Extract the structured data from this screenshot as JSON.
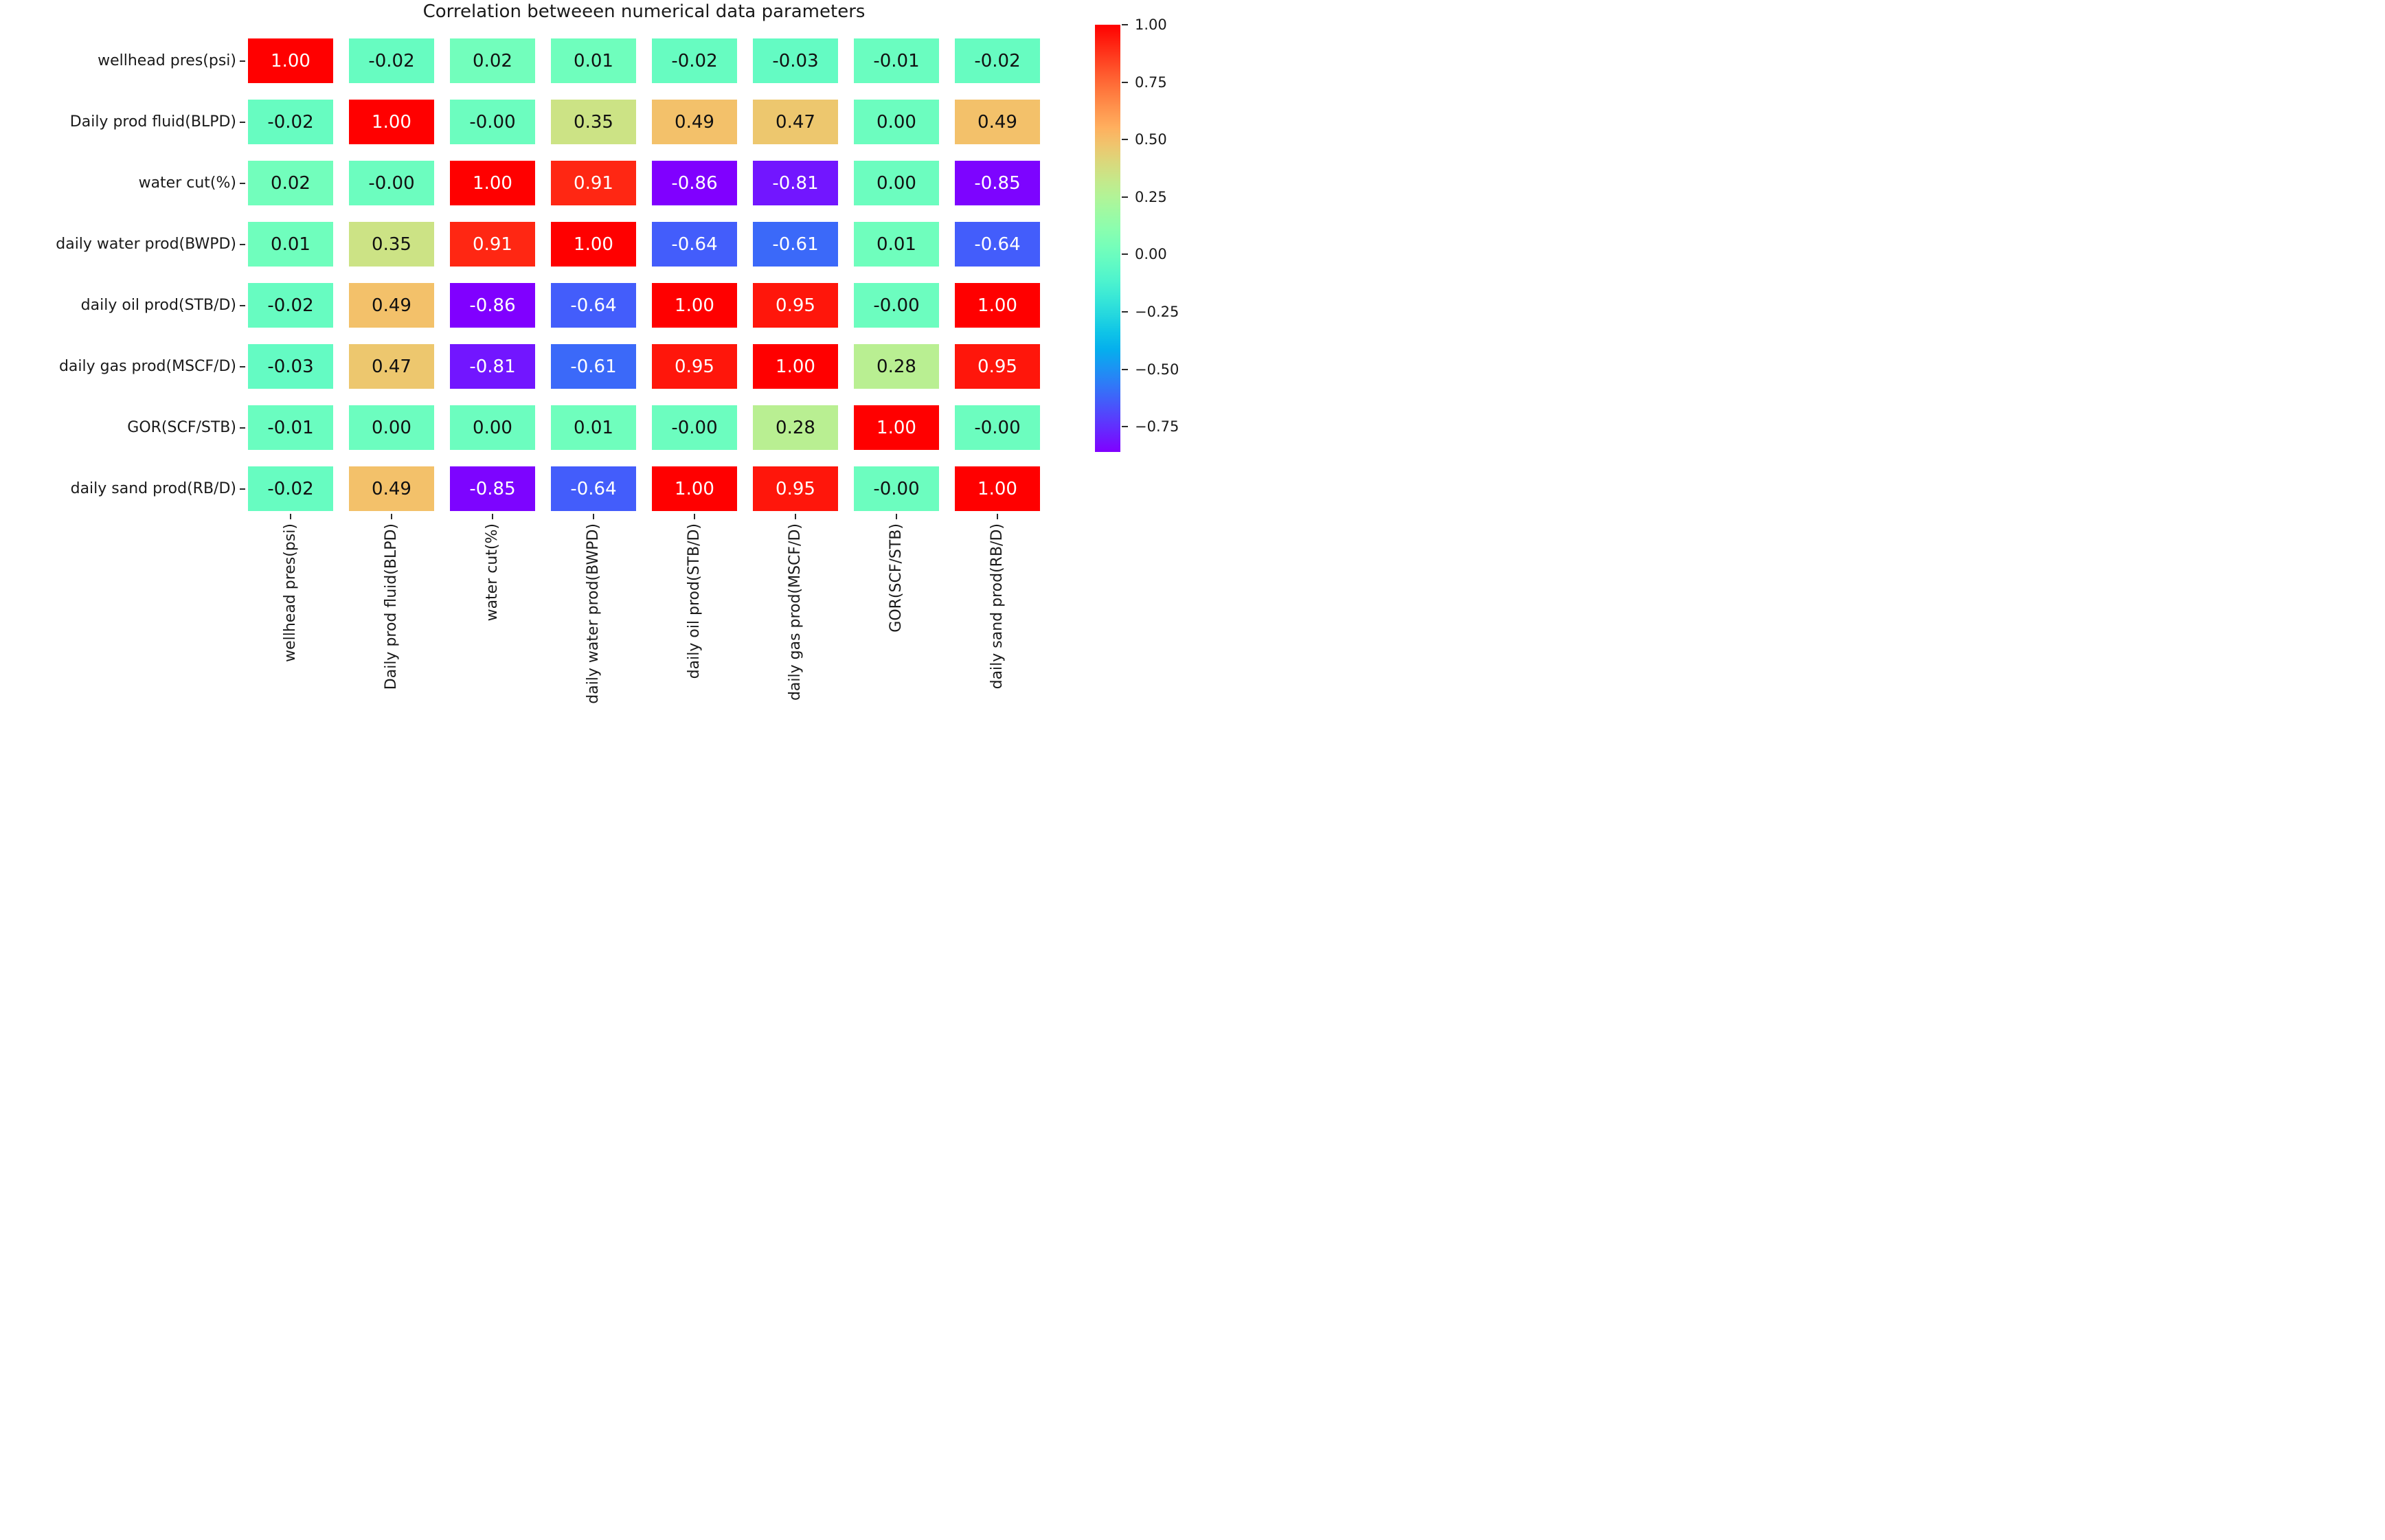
{
  "figure": {
    "background": "#ffffff",
    "text_color": "#1a1a1a"
  },
  "chart_data": {
    "type": "heatmap",
    "title": "Correlation betweeen numerical data parameters",
    "x_labels": [
      "wellhead pres(psi)",
      "Daily prod fluid(BLPD)",
      "water cut(%)",
      "daily water prod(BWPD)",
      "daily oil prod(STB/D)",
      "daily gas prod(MSCF/D)",
      "GOR(SCF/STB)",
      "daily sand prod(RB/D)"
    ],
    "y_labels": [
      "wellhead pres(psi)",
      "Daily prod fluid(BLPD)",
      "water cut(%)",
      "daily water prod(BWPD)",
      "daily oil prod(STB/D)",
      "daily gas prod(MSCF/D)",
      "GOR(SCF/STB)",
      "daily sand prod(RB/D)"
    ],
    "matrix": [
      [
        "1.00",
        "-0.02",
        "0.02",
        "0.01",
        "-0.02",
        "-0.03",
        "-0.01",
        "-0.02"
      ],
      [
        "-0.02",
        "1.00",
        "-0.00",
        "0.35",
        "0.49",
        "0.47",
        "0.00",
        "0.49"
      ],
      [
        "0.02",
        "-0.00",
        "1.00",
        "0.91",
        "-0.86",
        "-0.81",
        "0.00",
        "-0.85"
      ],
      [
        "0.01",
        "0.35",
        "0.91",
        "1.00",
        "-0.64",
        "-0.61",
        "0.01",
        "-0.64"
      ],
      [
        "-0.02",
        "0.49",
        "-0.86",
        "-0.64",
        "1.00",
        "0.95",
        "-0.00",
        "1.00"
      ],
      [
        "-0.03",
        "0.47",
        "-0.81",
        "-0.61",
        "0.95",
        "1.00",
        "0.28",
        "0.95"
      ],
      [
        "-0.01",
        "0.00",
        "0.00",
        "0.01",
        "-0.00",
        "0.28",
        "1.00",
        "-0.00"
      ],
      [
        "-0.02",
        "0.49",
        "-0.85",
        "-0.64",
        "1.00",
        "0.95",
        "-0.00",
        "1.00"
      ]
    ],
    "colormap": "rainbow",
    "vmin": -0.86,
    "vmax": 1.0,
    "gap_color": "#ffffff",
    "annotation_colors": {
      "on_light": "#111111",
      "on_dark": "#ffffff"
    },
    "colorbar": {
      "position": "right",
      "tick_values": [
        1.0,
        0.75,
        0.5,
        0.25,
        0.0,
        -0.25,
        -0.5,
        -0.75
      ],
      "tick_labels": [
        "1.00",
        "0.75",
        "0.50",
        "0.25",
        "0.00",
        "−0.25",
        "−0.50",
        "−0.75"
      ]
    }
  }
}
